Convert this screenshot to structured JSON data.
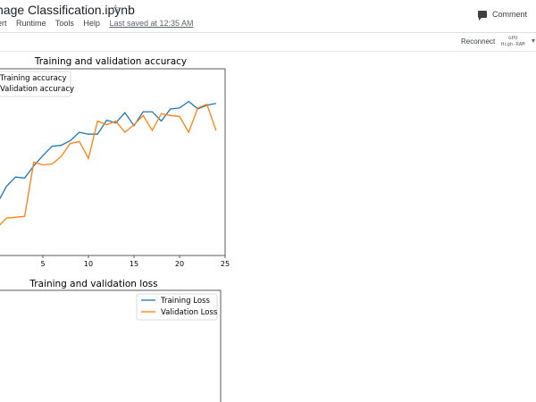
{
  "header": {
    "notebook_title": "nage Classification.ipynb",
    "star_icon": "star-icon",
    "menu": [
      "ert",
      "Runtime",
      "Tools",
      "Help"
    ],
    "last_saved": "Last saved at 12:35 AM",
    "comment_label": "Comment"
  },
  "toolbar": {
    "reconnect_label": "Reconnect",
    "runtime_line1": "GPU",
    "runtime_line2": "High-RAM"
  },
  "chart_data": [
    {
      "type": "line",
      "title": "Training and validation accuracy",
      "x": [
        0,
        1,
        2,
        3,
        4,
        5,
        6,
        7,
        8,
        9,
        10,
        11,
        12,
        13,
        14,
        15,
        16,
        17,
        18,
        19,
        20,
        21,
        22,
        23,
        24
      ],
      "xticks": [
        5,
        10,
        15,
        20,
        25
      ],
      "xlim": [
        0,
        25
      ],
      "ylim": [
        0,
        1
      ],
      "legend": "upper-left",
      "series": [
        {
          "name": "Training accuracy",
          "color": "#1f77b4",
          "values": [
            0.28,
            0.37,
            0.42,
            0.415,
            0.48,
            0.535,
            0.585,
            0.59,
            0.615,
            0.66,
            0.65,
            0.65,
            0.725,
            0.71,
            0.765,
            0.695,
            0.77,
            0.77,
            0.72,
            0.785,
            0.79,
            0.825,
            0.785,
            0.805,
            0.815
          ]
        },
        {
          "name": "Validation accuracy",
          "color": "#ff7f0e",
          "values": [
            0.15,
            0.2,
            0.205,
            0.21,
            0.5,
            0.485,
            0.49,
            0.53,
            0.6,
            0.61,
            0.52,
            0.72,
            0.7,
            0.72,
            0.66,
            0.7,
            0.75,
            0.67,
            0.76,
            0.75,
            0.745,
            0.66,
            0.79,
            0.81,
            0.67
          ]
        }
      ]
    },
    {
      "type": "line",
      "title": "Training and validation loss",
      "legend": "upper-right",
      "series": [
        {
          "name": "Training Loss",
          "color": "#1f77b4",
          "values": []
        },
        {
          "name": "Validation Loss",
          "color": "#ff7f0e",
          "values": []
        }
      ]
    }
  ]
}
